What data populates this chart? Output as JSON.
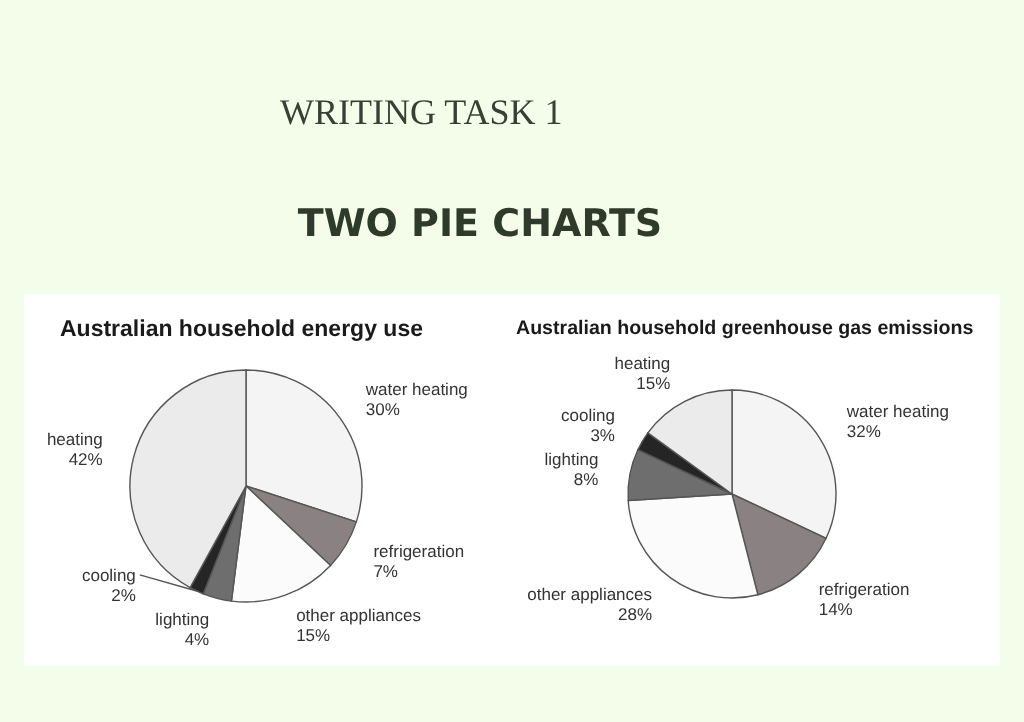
{
  "chart_data": [
    {
      "type": "pie",
      "title": "Australian household energy use",
      "annotations": [
        "WRITING TASK 1",
        "TWO PIE CHARTS"
      ],
      "categories": [
        "water heating",
        "refrigeration",
        "other appliances",
        "lighting",
        "cooling",
        "heating"
      ],
      "values": [
        30,
        7,
        15,
        4,
        2,
        42
      ],
      "value_labels": [
        "30%",
        "7%",
        "15%",
        "4%",
        "2%",
        "42%"
      ],
      "colors": [
        "#f4f4f4",
        "#8a8282",
        "#fbfbfb",
        "#6e6e6e",
        "#252525",
        "#ebebeb"
      ]
    },
    {
      "type": "pie",
      "title": "Australian household greenhouse gas emissions",
      "categories": [
        "water heating",
        "refrigeration",
        "other appliances",
        "lighting",
        "cooling",
        "heating"
      ],
      "values": [
        32,
        14,
        28,
        8,
        3,
        15
      ],
      "value_labels": [
        "32%",
        "14%",
        "28%",
        "8%",
        "3%",
        "15%"
      ],
      "colors": [
        "#f4f4f4",
        "#8a8282",
        "#fbfbfb",
        "#6e6e6e",
        "#252525",
        "#ebebeb"
      ]
    }
  ]
}
